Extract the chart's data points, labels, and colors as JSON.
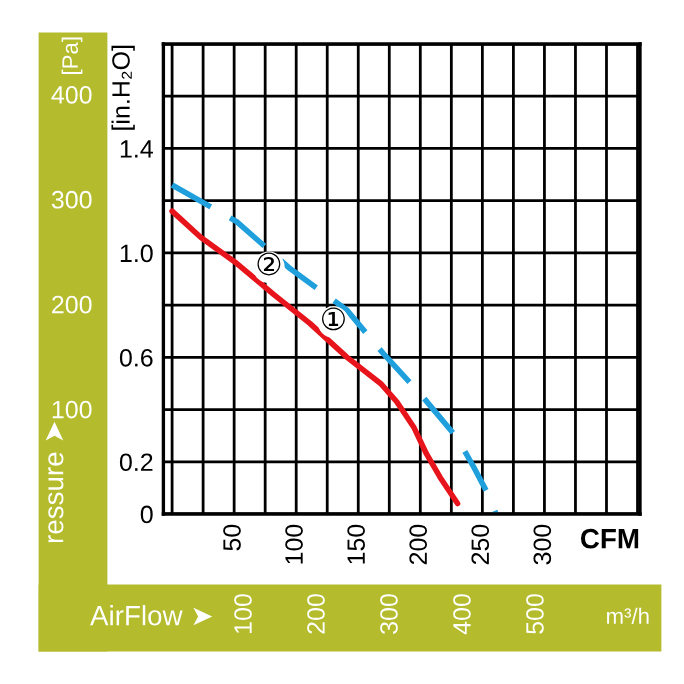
{
  "chart_data": {
    "type": "line",
    "xlabel": "CFM",
    "ylabel": "[in.H₂O]",
    "y2label": "ressure ➤",
    "x2label": "AirFlow ➤",
    "series": [
      {
        "color": "#e8141c",
        "line_style": "solid",
        "x": [
          0,
          23,
          52,
          82,
          111,
          141,
          168,
          181,
          195,
          205,
          216,
          230
        ],
        "values": [
          1.16,
          1.06,
          0.96,
          0.84,
          0.73,
          0.6,
          0.5,
          0.43,
          0.33,
          0.23,
          0.14,
          0.04
        ]
      },
      {
        "color": "#1fa0dc",
        "line_style": "dashed",
        "x": [
          0,
          52,
          95,
          141,
          171,
          200,
          230,
          243,
          253,
          261
        ],
        "values": [
          1.26,
          1.12,
          0.94,
          0.78,
          0.61,
          0.46,
          0.29,
          0.18,
          0.09,
          0.0
        ]
      }
    ],
    "xlim": [
      -7,
      377
    ],
    "ylim": [
      0,
      1.8
    ],
    "xticks": [
      {
        "value": 0,
        "label": null
      },
      {
        "value": 25,
        "label": null
      },
      50,
      {
        "value": 75,
        "label": null
      },
      100,
      {
        "value": 125,
        "label": null
      },
      150,
      {
        "value": 175,
        "label": null
      },
      200,
      {
        "value": 225,
        "label": null
      },
      250,
      {
        "value": 275,
        "label": null
      },
      300,
      {
        "value": 325,
        "label": null
      },
      {
        "value": 350,
        "label": null
      },
      {
        "value": 375,
        "label": null
      }
    ],
    "yticks": [
      0,
      0.2,
      {
        "value": 0.4,
        "label": null
      },
      0.6,
      {
        "value": 0.8,
        "label": null
      },
      {
        "value": 1.0,
        "label": "1.0"
      },
      {
        "value": 1.2,
        "label": null
      },
      1.4,
      {
        "value": 1.6,
        "label": null
      },
      {
        "value": 1.8,
        "label": null
      }
    ],
    "y2lim": [
      0,
      448
    ],
    "y2ticks": [
      100,
      200,
      300,
      400
    ],
    "x2lim": [
      -12,
      641
    ],
    "x2ticks": [
      100,
      200,
      300,
      400,
      500
    ],
    "grid": true,
    "annotations": [
      "[Pa]",
      "m³/h",
      {
        "text": "②",
        "x": 78,
        "y": 0.945
      },
      {
        "text": "①",
        "x": 130,
        "y": 0.735
      }
    ]
  }
}
